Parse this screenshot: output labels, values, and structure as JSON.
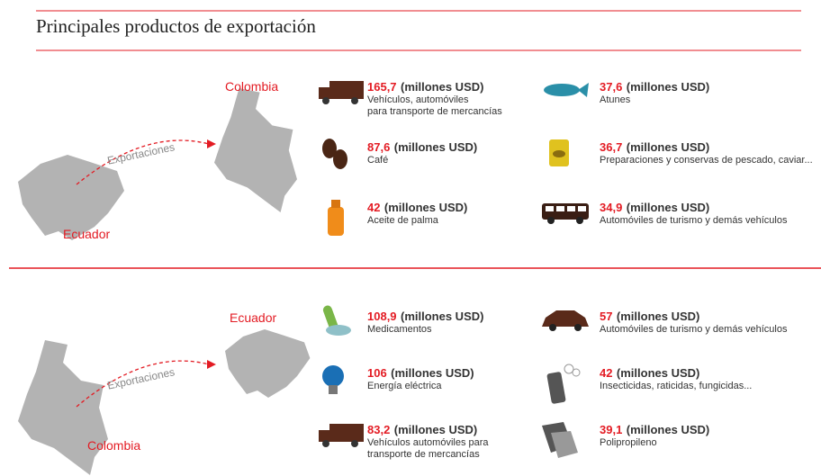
{
  "title": "Principales productos de exportación",
  "sections": [
    {
      "origin": "Ecuador",
      "destination": "Colombia",
      "flow_label": "Exportaciones",
      "products": [
        {
          "value": "165,7",
          "unit": "(millones USD)",
          "description": "Vehículos, automóviles\npara transporte de mercancías"
        },
        {
          "value": "37,6",
          "unit": "(millones USD)",
          "description": "Atunes"
        },
        {
          "value": "87,6",
          "unit": "(millones USD)",
          "description": "Café"
        },
        {
          "value": "36,7",
          "unit": "(millones USD)",
          "description": "Preparaciones y conservas de pescado, caviar..."
        },
        {
          "value": "42",
          "unit": "(millones USD)",
          "description": "Aceite de palma"
        },
        {
          "value": "34,9",
          "unit": "(millones USD)",
          "description": "Automóviles de turismo y demás vehículos"
        }
      ]
    },
    {
      "origin": "Colombia",
      "destination": "Ecuador",
      "flow_label": "Exportaciones",
      "products": [
        {
          "value": "108,9",
          "unit": "(millones USD)",
          "description": "Medicamentos"
        },
        {
          "value": "57",
          "unit": "(millones USD)",
          "description": "Automóviles de turismo y demás vehículos"
        },
        {
          "value": "106",
          "unit": "(millones USD)",
          "description": "Energía eléctrica"
        },
        {
          "value": "42",
          "unit": "(millones USD)",
          "description": "Insecticidas, raticidas, fungicidas..."
        },
        {
          "value": "83,2",
          "unit": "(millones USD)",
          "description": "Vehículos automóviles para\ntransporte de mercancías"
        },
        {
          "value": "39,1",
          "unit": "(millones USD)",
          "description": "Polipropileno"
        }
      ]
    }
  ]
}
